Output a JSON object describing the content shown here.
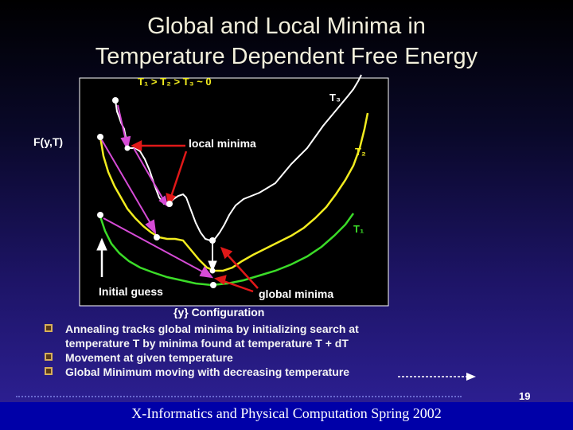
{
  "slide": {
    "title_line1": "Global and Local Minima in",
    "title_line2": "Temperature Dependent Free Energy"
  },
  "diagram": {
    "temp_relation": "T₁ > T₂ > T₃ ~ 0",
    "y_axis_label": "F(y,T)",
    "x_axis_label": "{y} Configuration",
    "curve_labels": {
      "t3": "T₃",
      "t2": "T₂",
      "t1": "T₁"
    },
    "local_minima_label": "local minima",
    "global_minima_label": "global minima",
    "initial_guess_label": "Initial guess",
    "colors": {
      "t3": "#ffffff",
      "t2": "#f2ec1f",
      "t1": "#3bdc28",
      "arrow_magenta": "#d64bd6",
      "arrow_red": "#e01818",
      "title": "#f3f0dc"
    }
  },
  "bullets": [
    {
      "text": "Annealing tracks global minima by initializing search at",
      "cont": "temperature T by minima found at temperature T + dT"
    },
    {
      "text": "Movement at given temperature"
    },
    {
      "text": "Global Minimum moving with decreasing temperature"
    }
  ],
  "footer": {
    "text": "X-Informatics and Physical Computation Spring 2002",
    "page_number": "19"
  }
}
